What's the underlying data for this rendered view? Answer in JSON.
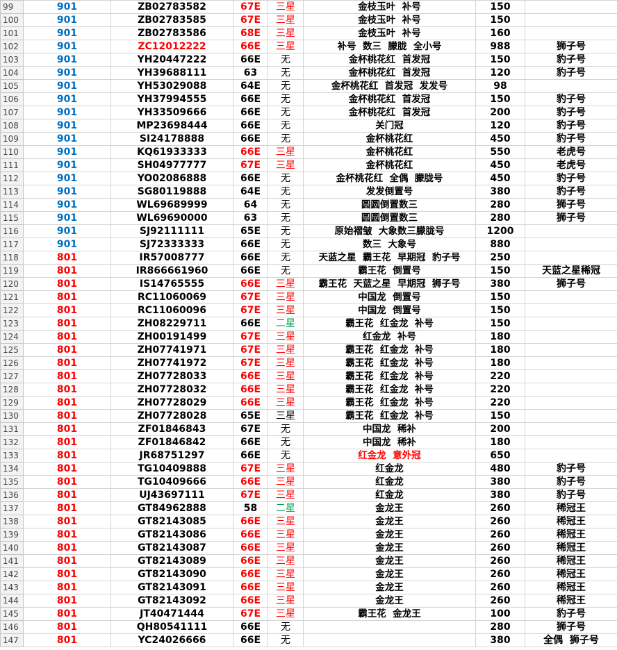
{
  "sheet": {
    "rows": [
      {
        "cells": [
          99,
          "901",
          "ZB02783582",
          "67E",
          "三星",
          "金枝玉叶  补号",
          150,
          null
        ],
        "colors": [
          null,
          "#0070c0",
          null,
          "#ff0000",
          "#ff0000",
          null,
          null,
          null
        ]
      },
      {
        "cells": [
          100,
          "901",
          "ZB02783585",
          "67E",
          "三星",
          "金枝玉叶  补号",
          150,
          null
        ],
        "colors": [
          null,
          "#0070c0",
          null,
          "#ff0000",
          "#ff0000",
          null,
          null,
          null
        ]
      },
      {
        "cells": [
          101,
          "901",
          "ZB02783586",
          "68E",
          "三星",
          "金枝玉叶  补号",
          160,
          null
        ],
        "colors": [
          null,
          "#0070c0",
          null,
          "#ff0000",
          "#ff0000",
          null,
          null,
          null
        ]
      },
      {
        "cells": [
          102,
          "901",
          "ZC12012222",
          "66E",
          "三星",
          "补号  数三  朦胧  全小号",
          988,
          "狮子号"
        ],
        "colors": [
          null,
          "#0070c0",
          "#ff0000",
          "#ff0000",
          "#ff0000",
          null,
          null,
          null
        ]
      },
      {
        "cells": [
          103,
          "901",
          "YH20447222",
          "66E",
          "无",
          "金杯桃花红  首发冠",
          150,
          "豹子号"
        ],
        "colors": [
          null,
          "#0070c0",
          null,
          null,
          null,
          null,
          null,
          null
        ]
      },
      {
        "cells": [
          104,
          "901",
          "YH39688111",
          "63",
          "无",
          "金杯桃花红  首发冠",
          120,
          "豹子号"
        ],
        "colors": [
          null,
          "#0070c0",
          null,
          null,
          null,
          null,
          null,
          null
        ]
      },
      {
        "cells": [
          105,
          "901",
          "YH53029088",
          "64E",
          "无",
          "金杯桃花红  首发冠  发发号",
          98,
          null
        ],
        "colors": [
          null,
          "#0070c0",
          null,
          null,
          null,
          null,
          null,
          null
        ]
      },
      {
        "cells": [
          106,
          "901",
          "YH37994555",
          "66E",
          "无",
          "金杯桃花红  首发冠",
          150,
          "豹子号"
        ],
        "colors": [
          null,
          "#0070c0",
          null,
          null,
          null,
          null,
          null,
          null
        ]
      },
      {
        "cells": [
          107,
          "901",
          "YH33509666",
          "66E",
          "无",
          "金杯桃花红  首发冠",
          200,
          "豹子号"
        ],
        "colors": [
          null,
          "#0070c0",
          null,
          null,
          null,
          null,
          null,
          null
        ]
      },
      {
        "cells": [
          108,
          "901",
          "MP23698444",
          "66E",
          "无",
          "关门冠",
          120,
          "豹子号"
        ],
        "colors": [
          null,
          "#0070c0",
          null,
          null,
          null,
          null,
          null,
          null
        ]
      },
      {
        "cells": [
          109,
          "901",
          "SI24178888",
          "66E",
          "无",
          "金杯桃花红",
          450,
          "豹子号"
        ],
        "colors": [
          null,
          "#0070c0",
          null,
          null,
          null,
          null,
          null,
          null
        ]
      },
      {
        "cells": [
          110,
          "901",
          "KQ61933333",
          "66E",
          "三星",
          "金杯桃花红",
          550,
          "老虎号"
        ],
        "colors": [
          null,
          "#0070c0",
          null,
          "#ff0000",
          "#ff0000",
          null,
          null,
          null
        ]
      },
      {
        "cells": [
          111,
          "901",
          "SH04977777",
          "67E",
          "三星",
          "金杯桃花红",
          450,
          "老虎号"
        ],
        "colors": [
          null,
          "#0070c0",
          null,
          "#ff0000",
          "#ff0000",
          null,
          null,
          null
        ]
      },
      {
        "cells": [
          112,
          "901",
          "YO02086888",
          "66E",
          "无",
          "金杯桃花红  全偶  朦胧号",
          450,
          "豹子号"
        ],
        "colors": [
          null,
          "#0070c0",
          null,
          null,
          null,
          null,
          null,
          null
        ]
      },
      {
        "cells": [
          113,
          "901",
          "SG80119888",
          "64E",
          "无",
          "发发倒置号",
          380,
          "豹子号"
        ],
        "colors": [
          null,
          "#0070c0",
          null,
          null,
          null,
          null,
          null,
          null
        ]
      },
      {
        "cells": [
          114,
          "901",
          "WL69689999",
          "64",
          "无",
          "圆圆倒置数三",
          280,
          "狮子号"
        ],
        "colors": [
          null,
          "#0070c0",
          null,
          null,
          null,
          null,
          null,
          null
        ]
      },
      {
        "cells": [
          115,
          "901",
          "WL69690000",
          "63",
          "无",
          "圆圆倒置数三",
          280,
          "狮子号"
        ],
        "colors": [
          null,
          "#0070c0",
          null,
          null,
          null,
          null,
          null,
          null
        ]
      },
      {
        "cells": [
          116,
          "901",
          "SJ92111111",
          "65E",
          "无",
          "原始褶皱  大象数三朦胧号",
          1200,
          null
        ],
        "colors": [
          null,
          "#0070c0",
          null,
          null,
          null,
          null,
          null,
          null
        ]
      },
      {
        "cells": [
          117,
          "901",
          "SJ72333333",
          "66E",
          "无",
          "数三  大象号",
          880,
          null
        ],
        "colors": [
          null,
          "#0070c0",
          null,
          null,
          null,
          null,
          null,
          null
        ]
      },
      {
        "cells": [
          118,
          "801",
          "IR57008777",
          "66E",
          "无",
          "天蓝之星  霸王花  早期冠  豹子号",
          250,
          null
        ],
        "colors": [
          null,
          "#ff0000",
          null,
          null,
          null,
          null,
          null,
          null
        ]
      },
      {
        "cells": [
          119,
          "801",
          "IR866661960",
          "66E",
          "无",
          "霸王花  倒置号",
          150,
          "天蓝之星稀冠"
        ],
        "colors": [
          null,
          "#ff0000",
          null,
          null,
          null,
          null,
          null,
          null
        ]
      },
      {
        "cells": [
          120,
          "801",
          "IS14765555",
          "66E",
          "三星",
          "霸王花  天蓝之星  早期冠  狮子号",
          380,
          "狮子号"
        ],
        "colors": [
          null,
          "#ff0000",
          null,
          "#ff0000",
          "#ff0000",
          null,
          null,
          null
        ]
      },
      {
        "cells": [
          121,
          "801",
          "RC11060069",
          "67E",
          "三星",
          "中国龙  倒置号",
          150,
          null
        ],
        "colors": [
          null,
          "#ff0000",
          null,
          "#ff0000",
          "#ff0000",
          null,
          null,
          null
        ]
      },
      {
        "cells": [
          122,
          "801",
          "RC11060096",
          "67E",
          "三星",
          "中国龙  倒置号",
          150,
          null
        ],
        "colors": [
          null,
          "#ff0000",
          null,
          "#ff0000",
          "#ff0000",
          null,
          null,
          null
        ]
      },
      {
        "cells": [
          123,
          "801",
          "ZH08229711",
          "66E",
          "二星",
          "霸王花  红金龙  补号",
          150,
          null
        ],
        "colors": [
          null,
          "#ff0000",
          null,
          null,
          "#00a050",
          null,
          null,
          null
        ]
      },
      {
        "cells": [
          124,
          "801",
          "ZH00191499",
          "67E",
          "三星",
          "红金龙  补号",
          180,
          null
        ],
        "colors": [
          null,
          "#ff0000",
          null,
          "#ff0000",
          "#ff0000",
          null,
          null,
          null
        ]
      },
      {
        "cells": [
          125,
          "801",
          "ZH07741971",
          "67E",
          "三星",
          "霸王花  红金龙  补号",
          180,
          null
        ],
        "colors": [
          null,
          "#ff0000",
          null,
          "#ff0000",
          "#ff0000",
          null,
          null,
          null
        ]
      },
      {
        "cells": [
          126,
          "801",
          "ZH07741972",
          "67E",
          "三星",
          "霸王花  红金龙  补号",
          180,
          null
        ],
        "colors": [
          null,
          "#ff0000",
          null,
          "#ff0000",
          "#ff0000",
          null,
          null,
          null
        ]
      },
      {
        "cells": [
          127,
          "801",
          "ZH07728033",
          "66E",
          "三星",
          "霸王花  红金龙  补号",
          220,
          null
        ],
        "colors": [
          null,
          "#ff0000",
          null,
          "#ff0000",
          "#ff0000",
          null,
          null,
          null
        ]
      },
      {
        "cells": [
          128,
          "801",
          "ZH07728032",
          "66E",
          "三星",
          "霸王花  红金龙  补号",
          220,
          null
        ],
        "colors": [
          null,
          "#ff0000",
          null,
          "#ff0000",
          "#ff0000",
          null,
          null,
          null
        ]
      },
      {
        "cells": [
          129,
          "801",
          "ZH07728029",
          "66E",
          "三星",
          "霸王花  红金龙  补号",
          220,
          null
        ],
        "colors": [
          null,
          "#ff0000",
          null,
          "#ff0000",
          "#ff0000",
          null,
          null,
          null
        ]
      },
      {
        "cells": [
          130,
          "801",
          "ZH07728028",
          "65E",
          "三星",
          "霸王花  红金龙  补号",
          150,
          null
        ],
        "colors": [
          null,
          "#ff0000",
          null,
          null,
          null,
          null,
          null,
          null
        ]
      },
      {
        "cells": [
          131,
          "801",
          "ZF01846843",
          "67E",
          "无",
          "中国龙  稀补",
          200,
          null
        ],
        "colors": [
          null,
          "#ff0000",
          null,
          null,
          null,
          null,
          null,
          null
        ]
      },
      {
        "cells": [
          132,
          "801",
          "ZF01846842",
          "66E",
          "无",
          "中国龙  稀补",
          180,
          null
        ],
        "colors": [
          null,
          "#ff0000",
          null,
          null,
          null,
          null,
          null,
          null
        ]
      },
      {
        "cells": [
          133,
          "801",
          "JR68751297",
          "66E",
          "无",
          "红金龙  意外冠",
          650,
          null
        ],
        "colors": [
          null,
          "#ff0000",
          null,
          null,
          null,
          "#ff0000",
          null,
          null
        ]
      },
      {
        "cells": [
          134,
          "801",
          "TG10409888",
          "67E",
          "三星",
          "红金龙",
          480,
          "豹子号"
        ],
        "colors": [
          null,
          "#ff0000",
          null,
          "#ff0000",
          "#ff0000",
          null,
          null,
          null
        ]
      },
      {
        "cells": [
          135,
          "801",
          "TG10409666",
          "66E",
          "三星",
          "红金龙",
          380,
          "豹子号"
        ],
        "colors": [
          null,
          "#ff0000",
          null,
          "#ff0000",
          "#ff0000",
          null,
          null,
          null
        ]
      },
      {
        "cells": [
          136,
          "801",
          "UJ43697111",
          "67E",
          "三星",
          "红金龙",
          380,
          "豹子号"
        ],
        "colors": [
          null,
          "#ff0000",
          null,
          "#ff0000",
          "#ff0000",
          null,
          null,
          null
        ]
      },
      {
        "cells": [
          137,
          "801",
          "GT84962888",
          "58",
          "二星",
          "金龙王",
          260,
          "稀冠王"
        ],
        "colors": [
          null,
          "#ff0000",
          null,
          null,
          "#00a050",
          null,
          null,
          null
        ]
      },
      {
        "cells": [
          138,
          "801",
          "GT82143085",
          "66E",
          "三星",
          "金龙王",
          260,
          "稀冠王"
        ],
        "colors": [
          null,
          "#ff0000",
          null,
          "#ff0000",
          "#ff0000",
          null,
          null,
          null
        ]
      },
      {
        "cells": [
          139,
          "801",
          "GT82143086",
          "66E",
          "三星",
          "金龙王",
          260,
          "稀冠王"
        ],
        "colors": [
          null,
          "#ff0000",
          null,
          "#ff0000",
          "#ff0000",
          null,
          null,
          null
        ]
      },
      {
        "cells": [
          140,
          "801",
          "GT82143087",
          "66E",
          "三星",
          "金龙王",
          260,
          "稀冠王"
        ],
        "colors": [
          null,
          "#ff0000",
          null,
          "#ff0000",
          "#ff0000",
          null,
          null,
          null
        ]
      },
      {
        "cells": [
          141,
          "801",
          "GT82143089",
          "66E",
          "三星",
          "金龙王",
          260,
          "稀冠王"
        ],
        "colors": [
          null,
          "#ff0000",
          null,
          "#ff0000",
          "#ff0000",
          null,
          null,
          null
        ]
      },
      {
        "cells": [
          142,
          "801",
          "GT82143090",
          "66E",
          "三星",
          "金龙王",
          260,
          "稀冠王"
        ],
        "colors": [
          null,
          "#ff0000",
          null,
          "#ff0000",
          "#ff0000",
          null,
          null,
          null
        ]
      },
      {
        "cells": [
          143,
          "801",
          "GT82143091",
          "66E",
          "三星",
          "金龙王",
          260,
          "稀冠王"
        ],
        "colors": [
          null,
          "#ff0000",
          null,
          "#ff0000",
          "#ff0000",
          null,
          null,
          null
        ]
      },
      {
        "cells": [
          144,
          "801",
          "GT82143092",
          "66E",
          "三星",
          "金龙王",
          260,
          "稀冠王"
        ],
        "colors": [
          null,
          "#ff0000",
          null,
          "#ff0000",
          "#ff0000",
          null,
          null,
          null
        ]
      },
      {
        "cells": [
          145,
          "801",
          "JT40471444",
          "67E",
          "三星",
          "霸王花  金龙王",
          100,
          "豹子号"
        ],
        "colors": [
          null,
          "#ff0000",
          null,
          "#ff0000",
          "#ff0000",
          null,
          null,
          null
        ]
      },
      {
        "cells": [
          146,
          "801",
          "QH80541111",
          "66E",
          "无",
          null,
          280,
          "狮子号"
        ],
        "colors": [
          null,
          "#ff0000",
          null,
          null,
          null,
          null,
          null,
          null
        ]
      },
      {
        "cells": [
          147,
          "801",
          "YC24026666",
          "66E",
          "无",
          null,
          380,
          "全偶  狮子号"
        ],
        "colors": [
          null,
          "#ff0000",
          null,
          null,
          null,
          null,
          null,
          null
        ]
      }
    ]
  }
}
